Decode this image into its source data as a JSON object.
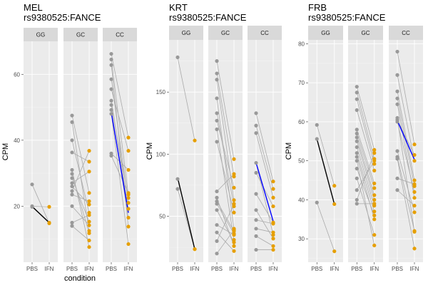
{
  "colors": {
    "panel_bg": "#EBEBEB",
    "grid_major": "#FFFFFF",
    "strip_bg": "#D9D9D9",
    "pbs_point": "#999999",
    "ifn_point": "#E69F00",
    "pair_line": "#AAAAAA",
    "mean_gg": "#000000",
    "mean_cc": "#0000FF"
  },
  "chart_data": [
    {
      "type": "scatter",
      "title": "MEL\nrs9380525:FANCE",
      "cell_line": "MEL",
      "snp_gene": "rs9380525:FANCE",
      "xlabel": "condition",
      "ylabel": "CPM",
      "x_categories": [
        "PBS",
        "IFN"
      ],
      "ylim": [
        3,
        70
      ],
      "yticks": [
        20,
        40,
        60
      ],
      "genotypes": [
        {
          "name": "GG",
          "pairs": [
            [
              26.6,
              14.8
            ],
            [
              20.0,
              19.8
            ],
            [
              19.8,
              15.0
            ]
          ],
          "mean": [
            19.9,
            15.0
          ],
          "mean_color": "#000000"
        },
        {
          "name": "GC",
          "pairs": [
            [
              47.5,
              24.0
            ],
            [
              45.5,
              12.5
            ],
            [
              40.0,
              18.0
            ],
            [
              36.3,
              33.5
            ],
            [
              31.0,
              7.6
            ],
            [
              29.8,
              11.8
            ],
            [
              28.5,
              15.3
            ],
            [
              27.0,
              30.5
            ],
            [
              26.0,
              20.5
            ],
            [
              24.6,
              36.8
            ],
            [
              23.5,
              21.5
            ],
            [
              20.0,
              14.2
            ],
            [
              15.0,
              17.3
            ],
            [
              14.0,
              9.6
            ]
          ],
          "mean": null,
          "mean_color": null
        },
        {
          "name": "CC",
          "pairs": [
            [
              66.2,
              40.8
            ],
            [
              64.5,
              23.5
            ],
            [
              62.8,
              13.8
            ],
            [
              58.5,
              21.0
            ],
            [
              55.5,
              36.8
            ],
            [
              52.0,
              19.2
            ],
            [
              50.7,
              22.5
            ],
            [
              49.2,
              16.5
            ],
            [
              48.0,
              8.5
            ],
            [
              36.0,
              31.0
            ],
            [
              35.3,
              24.0
            ]
          ],
          "mean": [
            48.5,
            18.0
          ],
          "mean_color": "#0000FF"
        }
      ]
    },
    {
      "type": "scatter",
      "title": "KRT\nrs9380525:FANCE",
      "cell_line": "KRT",
      "snp_gene": "rs9380525:FANCE",
      "xlabel": "",
      "ylabel": "CPM",
      "x_categories": [
        "PBS",
        "IFN"
      ],
      "ylim": [
        13,
        192
      ],
      "yticks": [
        50,
        100,
        150
      ],
      "genotypes": [
        {
          "name": "GG",
          "pairs": [
            [
              178.0,
              111.0
            ],
            [
              80.0,
              23.5
            ],
            [
              72.0,
              23.5
            ]
          ],
          "mean": [
            81.0,
            23.5
          ],
          "mean_color": "#000000"
        },
        {
          "name": "GC",
          "pairs": [
            [
              175.0,
              96.0
            ],
            [
              165.0,
              82.0
            ],
            [
              160.0,
              63.0
            ],
            [
              145.0,
              40.0
            ],
            [
              133.0,
              58.0
            ],
            [
              127.0,
              73.0
            ],
            [
              120.0,
              31.0
            ],
            [
              110.0,
              53.0
            ],
            [
              70.0,
              84.0
            ],
            [
              65.0,
              26.0
            ],
            [
              62.0,
              38.0
            ],
            [
              60.0,
              36.0
            ],
            [
              55.0,
              29.0
            ],
            [
              43.0,
              35.0
            ],
            [
              37.0,
              22.0
            ],
            [
              30.0,
              60.0
            ],
            [
              20.0,
              39.0
            ]
          ],
          "mean": null,
          "mean_color": null
        },
        {
          "name": "CC",
          "pairs": [
            [
              133.0,
              78.0
            ],
            [
              123.0,
              72.0
            ],
            [
              117.0,
              65.0
            ],
            [
              93.0,
              35.0
            ],
            [
              85.0,
              58.0
            ],
            [
              68.0,
              45.0
            ],
            [
              55.0,
              32.0
            ],
            [
              47.0,
              44.0
            ],
            [
              40.0,
              37.0
            ],
            [
              34.0,
              26.0
            ],
            [
              23.0,
              23.0
            ]
          ],
          "mean": [
            93.0,
            46.0
          ],
          "mean_color": "#0000FF"
        }
      ]
    },
    {
      "type": "scatter",
      "title": "FRB\nrs9380525:FANCE",
      "cell_line": "FRB",
      "snp_gene": "rs9380525:FANCE",
      "xlabel": "",
      "ylabel": "CPM",
      "x_categories": [
        "PBS",
        "IFN"
      ],
      "ylim": [
        24,
        81
      ],
      "yticks": [
        30,
        40,
        50,
        60,
        70,
        80
      ],
      "genotypes": [
        {
          "name": "GG",
          "pairs": [
            [
              59.2,
              43.6
            ],
            [
              55.6,
              38.9
            ],
            [
              39.3,
              26.8
            ]
          ],
          "mean": [
            55.6,
            38.9
          ],
          "mean_color": "#000000"
        },
        {
          "name": "GC",
          "pairs": [
            [
              69.0,
              52.8
            ],
            [
              67.5,
              50.5
            ],
            [
              65.8,
              49.2
            ],
            [
              63.0,
              47.5
            ],
            [
              58.0,
              44.2
            ],
            [
              57.0,
              43.0
            ],
            [
              56.0,
              41.2
            ],
            [
              55.0,
              40.0
            ],
            [
              53.5,
              38.5
            ],
            [
              52.0,
              37.0
            ],
            [
              51.0,
              35.0
            ],
            [
              50.0,
              28.3
            ],
            [
              48.0,
              36.0
            ],
            [
              45.5,
              31.0
            ],
            [
              42.5,
              50.0
            ],
            [
              40.0,
              52.0
            ],
            [
              39.0,
              39.0
            ]
          ],
          "mean": null,
          "mean_color": null
        },
        {
          "name": "CC",
          "pairs": [
            [
              78.0,
              54.2
            ],
            [
              72.0,
              50.0
            ],
            [
              67.8,
              45.0
            ],
            [
              66.0,
              43.5
            ],
            [
              64.5,
              40.5
            ],
            [
              61.0,
              31.8
            ],
            [
              60.5,
              51.5
            ],
            [
              60.0,
              42.0
            ],
            [
              52.5,
              36.8
            ],
            [
              51.0,
              32.0
            ],
            [
              50.5,
              27.5
            ],
            [
              45.5,
              44.0
            ],
            [
              42.5,
              38.5
            ]
          ],
          "mean": [
            60.3,
            50.3
          ],
          "mean_color": "#0000FF"
        }
      ]
    }
  ]
}
